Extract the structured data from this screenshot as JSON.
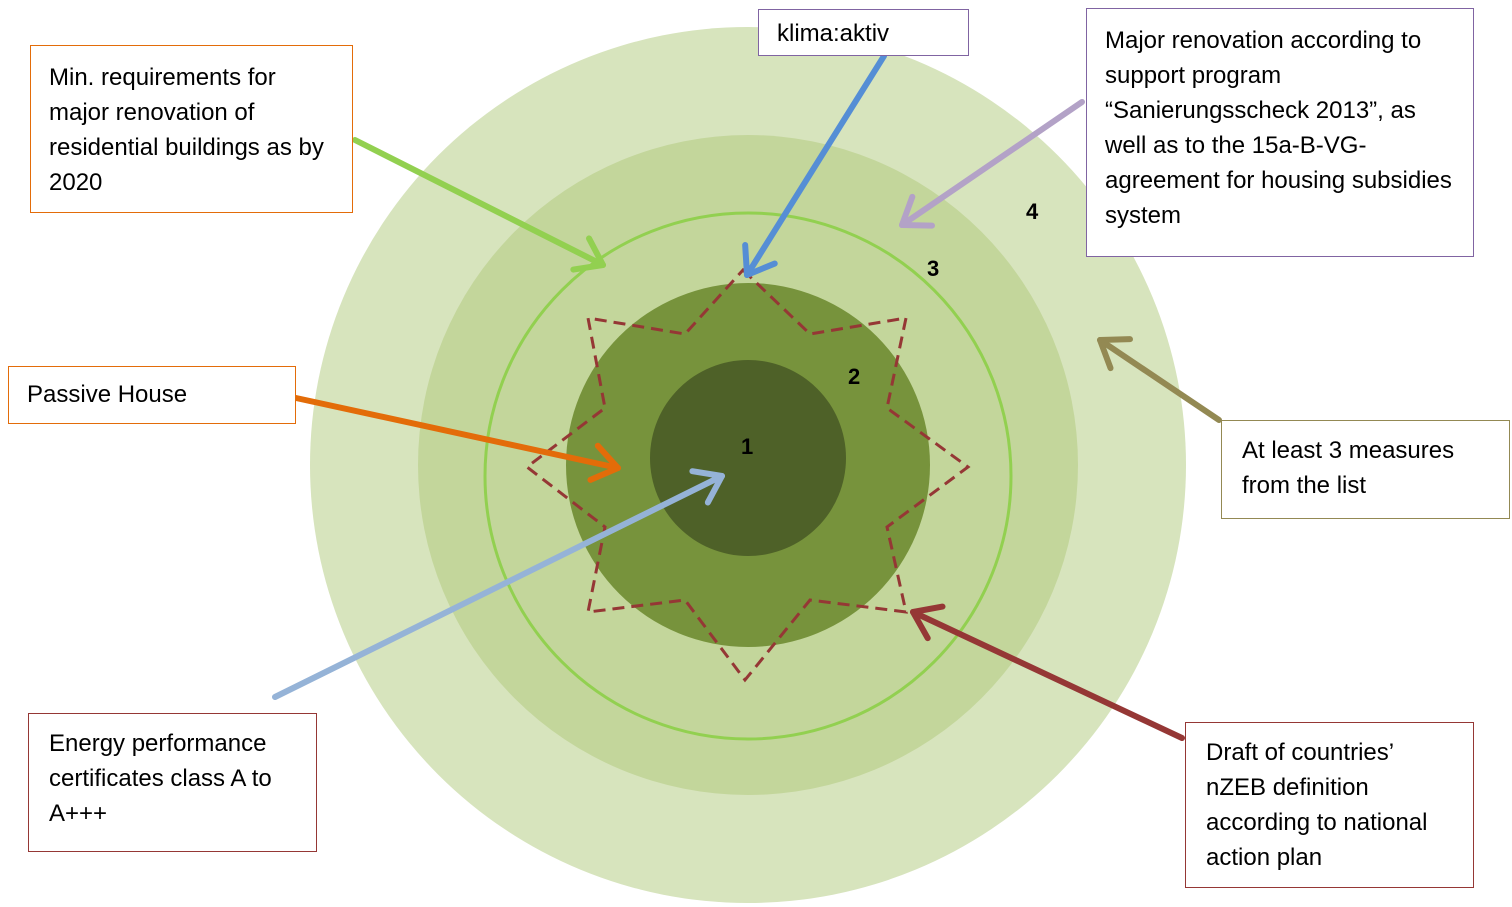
{
  "rings": [
    {
      "label": "1",
      "color": "#4e6128"
    },
    {
      "label": "2",
      "color": "#77933c"
    },
    {
      "label": "3",
      "color": "#c3d69b"
    },
    {
      "label": "4",
      "color": "#d7e4bd"
    }
  ],
  "callouts": {
    "min_requirements": {
      "text": "Min. requirements for major renovation of residential buildings as by 2020",
      "border": "#e36c09",
      "arrow": "#92d050"
    },
    "klima_aktiv": {
      "text": "klima:aktiv",
      "border": "#8064a2",
      "arrow": "#558ed5"
    },
    "major_renovation": {
      "text": "Major renovation according to support program “Sanierungsscheck 2013”, as well as to the 15a-B-VG-agreement for housing subsidies system",
      "border": "#8064a2",
      "arrow": "#b3a2c7"
    },
    "passive_house": {
      "text": "Passive House",
      "border": "#e36c09",
      "arrow": "#e36c09"
    },
    "at_least_3": {
      "text": "At least 3 measures from the list",
      "border": "#938953",
      "arrow": "#938953"
    },
    "energy_performance": {
      "text": "Energy performance certificates class A to A+++",
      "border": "#953735",
      "arrow": "#95b3d7"
    },
    "draft_nzeb": {
      "text": "Draft of countries’ nZEB definition according to national action plan",
      "border": "#953735",
      "arrow": "#953735"
    }
  },
  "outline_colors": {
    "circle": "#92d050",
    "star": "#953735"
  }
}
